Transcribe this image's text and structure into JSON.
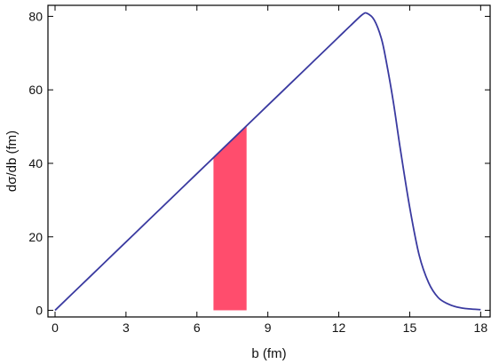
{
  "chart_data": {
    "type": "line",
    "title": "",
    "xlabel": "b (fm)",
    "ylabel": "dσ/db (fm)",
    "xlim": [
      -0.3,
      18.4
    ],
    "ylim": [
      -1.8,
      83.0
    ],
    "xticks": [
      0,
      3,
      6,
      9,
      12,
      15,
      18
    ],
    "yticks": [
      0,
      20,
      40,
      60,
      80
    ],
    "grid": false,
    "legend": "none",
    "line_color": "#3a3aa0",
    "shade_color": "#ff4d6d",
    "shaded_band": {
      "x_from": 6.7,
      "x_to": 8.1
    },
    "series": [
      {
        "x": [
          0,
          1,
          2,
          3,
          4,
          5,
          6,
          7,
          8,
          9,
          10,
          11,
          12,
          12.5,
          13.0,
          13.2,
          13.5,
          13.8,
          14.0,
          14.3,
          14.6,
          15.0,
          15.4,
          15.8,
          16.2,
          16.6,
          17.0,
          17.5,
          18.0
        ],
        "values": [
          0,
          6.2,
          12.4,
          18.6,
          24.8,
          31.0,
          37.2,
          43.4,
          49.6,
          55.8,
          62.0,
          68.2,
          74.4,
          77.5,
          80.5,
          80.8,
          79.0,
          74.0,
          68.0,
          57.0,
          44.0,
          28.0,
          15.0,
          7.5,
          3.5,
          1.8,
          0.9,
          0.4,
          0.2
        ]
      }
    ]
  }
}
